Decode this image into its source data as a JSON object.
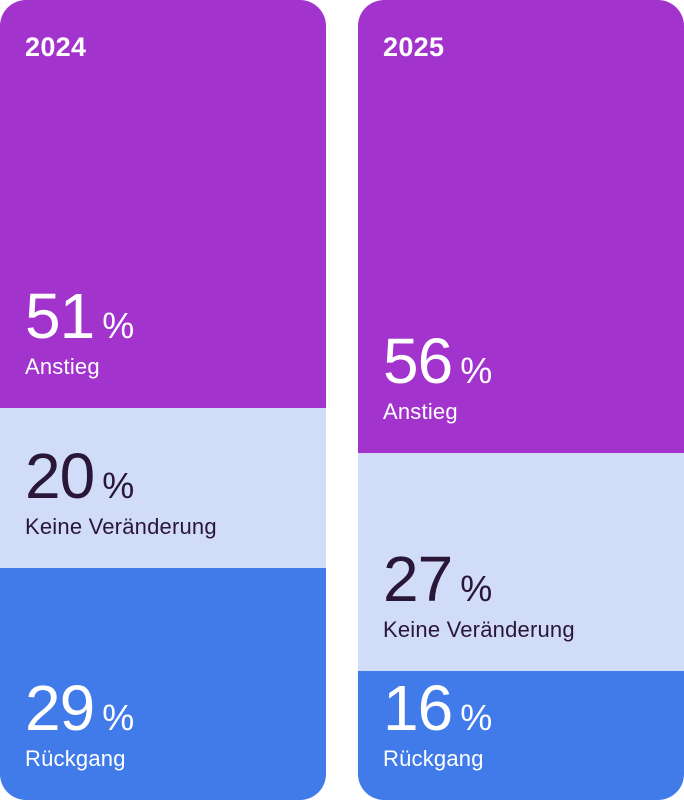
{
  "chart_data": {
    "type": "bar",
    "stacked": true,
    "categories": [
      "2024",
      "2025"
    ],
    "series": [
      {
        "name": "Anstieg",
        "values": [
          51,
          56
        ],
        "color": "#a233cc",
        "text_color": "#ffffff"
      },
      {
        "name": "Keine Veränderung",
        "values": [
          20,
          27
        ],
        "color": "#d0dcf8",
        "text_color": "#2a1637"
      },
      {
        "name": "Rückgang",
        "values": [
          29,
          16
        ],
        "color": "#417bea",
        "text_color": "#ffffff"
      }
    ],
    "unit": "%",
    "ylim": [
      0,
      100
    ],
    "legend": "none"
  }
}
